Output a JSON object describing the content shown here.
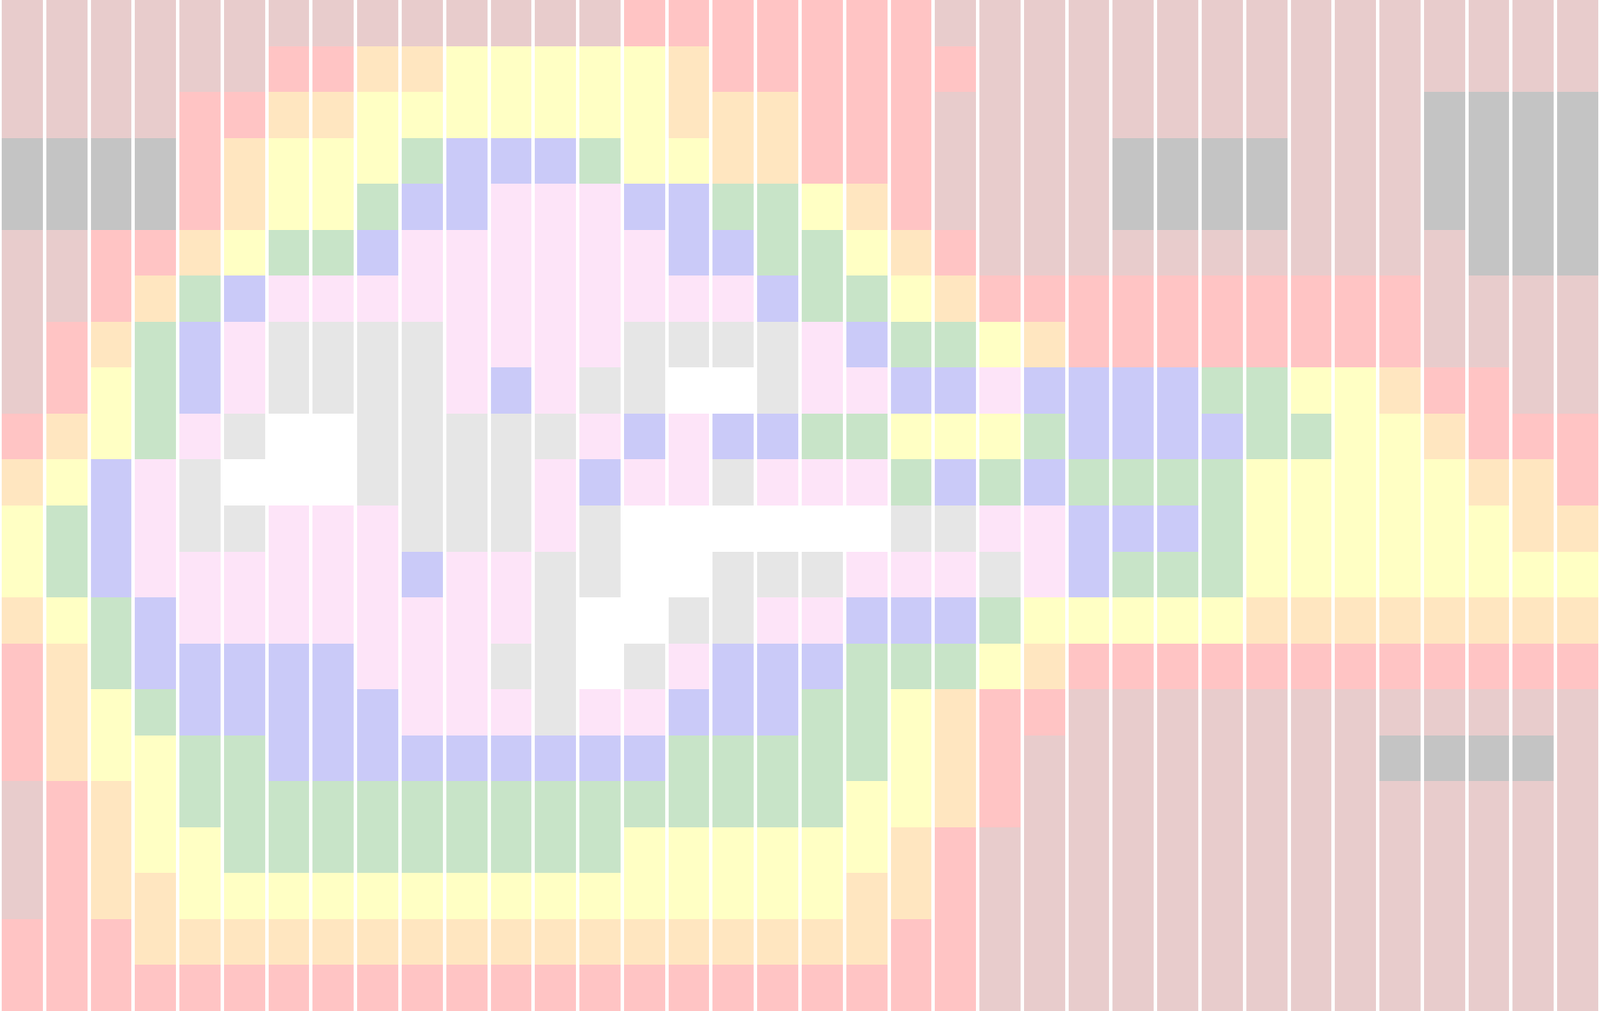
{
  "chart_data": {
    "type": "heatmap",
    "colors": [
      "#ffffff",
      "#e6e6e6",
      "#fde4f8",
      "#cacaf8",
      "#c8e4c8",
      "#ffffc4",
      "#ffe6c0",
      "#ffc4c4",
      "#e8cccc",
      "#c4c4c4"
    ],
    "tick_labels": false,
    "cells": [
      [
        8,
        8,
        8,
        8,
        8,
        8,
        8,
        8,
        8,
        8,
        8,
        8,
        8,
        8,
        7,
        7,
        7,
        7,
        7,
        7,
        7,
        8,
        8,
        8,
        8,
        8,
        8,
        8,
        8,
        8,
        8,
        8,
        8,
        8,
        8,
        8
      ],
      [
        8,
        8,
        8,
        8,
        8,
        8,
        7,
        7,
        6,
        6,
        5,
        5,
        5,
        5,
        5,
        6,
        7,
        7,
        7,
        7,
        7,
        7,
        8,
        8,
        8,
        8,
        8,
        8,
        8,
        8,
        8,
        8,
        8,
        8,
        8,
        8
      ],
      [
        8,
        8,
        8,
        8,
        7,
        7,
        6,
        6,
        5,
        5,
        5,
        5,
        5,
        5,
        5,
        6,
        6,
        6,
        7,
        7,
        7,
        8,
        8,
        8,
        8,
        8,
        8,
        8,
        8,
        8,
        8,
        8,
        9,
        9,
        9,
        9
      ],
      [
        9,
        9,
        9,
        9,
        7,
        6,
        5,
        5,
        5,
        4,
        3,
        3,
        3,
        4,
        5,
        5,
        6,
        6,
        7,
        7,
        7,
        8,
        8,
        8,
        8,
        9,
        9,
        9,
        9,
        8,
        8,
        8,
        9,
        9,
        9,
        9
      ],
      [
        9,
        9,
        9,
        9,
        7,
        6,
        5,
        5,
        4,
        3,
        3,
        2,
        2,
        2,
        3,
        3,
        4,
        4,
        5,
        6,
        7,
        8,
        8,
        8,
        8,
        9,
        9,
        9,
        9,
        8,
        8,
        8,
        9,
        9,
        9,
        9
      ],
      [
        8,
        8,
        7,
        7,
        6,
        5,
        4,
        4,
        3,
        2,
        2,
        2,
        2,
        2,
        2,
        3,
        3,
        4,
        4,
        5,
        6,
        7,
        8,
        8,
        8,
        8,
        8,
        8,
        8,
        8,
        8,
        8,
        8,
        9,
        9,
        9
      ],
      [
        8,
        8,
        7,
        6,
        4,
        3,
        2,
        2,
        2,
        2,
        2,
        2,
        2,
        2,
        2,
        2,
        2,
        3,
        4,
        4,
        5,
        6,
        7,
        7,
        7,
        7,
        7,
        7,
        7,
        7,
        7,
        7,
        8,
        8,
        8,
        8
      ],
      [
        8,
        7,
        6,
        4,
        3,
        2,
        1,
        1,
        1,
        1,
        2,
        2,
        2,
        2,
        1,
        1,
        1,
        1,
        2,
        3,
        4,
        4,
        5,
        6,
        7,
        7,
        7,
        7,
        7,
        7,
        7,
        7,
        8,
        8,
        8,
        8
      ],
      [
        8,
        7,
        5,
        4,
        3,
        2,
        1,
        1,
        1,
        1,
        2,
        3,
        2,
        1,
        1,
        0,
        0,
        1,
        2,
        2,
        3,
        3,
        2,
        3,
        3,
        3,
        3,
        4,
        4,
        5,
        5,
        6,
        7,
        7,
        8,
        8
      ],
      [
        7,
        6,
        5,
        4,
        2,
        1,
        0,
        0,
        1,
        1,
        1,
        1,
        1,
        2,
        3,
        2,
        3,
        3,
        4,
        4,
        5,
        5,
        5,
        4,
        3,
        3,
        3,
        3,
        4,
        4,
        5,
        5,
        6,
        7,
        7,
        7
      ],
      [
        6,
        5,
        3,
        2,
        1,
        0,
        0,
        0,
        1,
        1,
        1,
        1,
        2,
        3,
        2,
        2,
        1,
        2,
        2,
        2,
        4,
        3,
        4,
        3,
        4,
        4,
        4,
        4,
        5,
        5,
        5,
        5,
        5,
        6,
        6,
        7
      ],
      [
        5,
        4,
        3,
        2,
        1,
        1,
        2,
        2,
        2,
        1,
        1,
        1,
        2,
        1,
        0,
        0,
        0,
        0,
        0,
        0,
        1,
        1,
        2,
        2,
        3,
        3,
        3,
        4,
        5,
        5,
        5,
        5,
        5,
        5,
        6,
        6
      ],
      [
        5,
        4,
        3,
        2,
        2,
        2,
        2,
        2,
        2,
        3,
        2,
        2,
        1,
        1,
        0,
        0,
        1,
        1,
        1,
        2,
        2,
        2,
        1,
        2,
        3,
        4,
        4,
        4,
        5,
        5,
        5,
        5,
        5,
        5,
        5,
        5
      ],
      [
        6,
        5,
        4,
        3,
        2,
        2,
        2,
        2,
        2,
        2,
        2,
        2,
        1,
        0,
        0,
        1,
        1,
        2,
        2,
        3,
        3,
        3,
        4,
        5,
        5,
        5,
        5,
        5,
        6,
        6,
        6,
        6,
        6,
        6,
        6,
        6
      ],
      [
        7,
        6,
        4,
        3,
        3,
        3,
        3,
        3,
        2,
        2,
        2,
        1,
        1,
        0,
        1,
        2,
        3,
        3,
        3,
        4,
        4,
        4,
        5,
        6,
        7,
        7,
        7,
        7,
        7,
        7,
        7,
        7,
        7,
        7,
        7,
        7
      ],
      [
        7,
        6,
        5,
        4,
        3,
        3,
        3,
        3,
        3,
        2,
        2,
        2,
        1,
        2,
        2,
        3,
        3,
        3,
        4,
        4,
        5,
        6,
        7,
        7,
        8,
        8,
        8,
        8,
        8,
        8,
        8,
        8,
        8,
        8,
        8,
        8
      ],
      [
        7,
        6,
        5,
        5,
        4,
        4,
        3,
        3,
        3,
        3,
        3,
        3,
        3,
        3,
        3,
        4,
        4,
        4,
        4,
        4,
        5,
        6,
        7,
        8,
        8,
        8,
        8,
        8,
        8,
        8,
        8,
        9,
        9,
        9,
        9,
        8
      ],
      [
        8,
        7,
        6,
        5,
        4,
        4,
        4,
        4,
        4,
        4,
        4,
        4,
        4,
        4,
        4,
        4,
        4,
        4,
        4,
        5,
        5,
        6,
        7,
        8,
        8,
        8,
        8,
        8,
        8,
        8,
        8,
        8,
        8,
        8,
        8,
        8
      ],
      [
        8,
        7,
        6,
        5,
        5,
        4,
        4,
        4,
        4,
        4,
        4,
        4,
        4,
        4,
        5,
        5,
        5,
        5,
        5,
        5,
        6,
        7,
        8,
        8,
        8,
        8,
        8,
        8,
        8,
        8,
        8,
        8,
        8,
        8,
        8,
        8
      ],
      [
        8,
        7,
        6,
        6,
        5,
        5,
        5,
        5,
        5,
        5,
        5,
        5,
        5,
        5,
        5,
        5,
        5,
        5,
        5,
        6,
        6,
        7,
        8,
        8,
        8,
        8,
        8,
        8,
        8,
        8,
        8,
        8,
        8,
        8,
        8,
        8
      ],
      [
        7,
        7,
        7,
        6,
        6,
        6,
        6,
        6,
        6,
        6,
        6,
        6,
        6,
        6,
        6,
        6,
        6,
        6,
        6,
        6,
        7,
        7,
        8,
        8,
        8,
        8,
        8,
        8,
        8,
        8,
        8,
        8,
        8,
        8,
        8,
        8
      ],
      [
        7,
        7,
        7,
        7,
        7,
        7,
        7,
        7,
        7,
        7,
        7,
        7,
        7,
        7,
        7,
        7,
        7,
        7,
        7,
        7,
        7,
        7,
        8,
        8,
        8,
        8,
        8,
        8,
        8,
        8,
        8,
        8,
        8,
        8,
        8,
        8
      ]
    ]
  }
}
